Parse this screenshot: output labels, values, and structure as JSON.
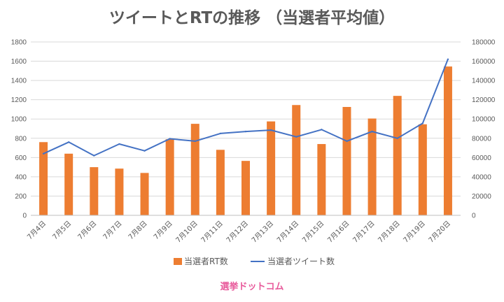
{
  "chart_data": {
    "type": "bar",
    "title": "ツイートとRTの推移 （当選者平均値）",
    "categories": [
      "7月4日",
      "7月5日",
      "7月6日",
      "7月7日",
      "7月8日",
      "7月9日",
      "7月10日",
      "7月11日",
      "7月12日",
      "7月13日",
      "7月14日",
      "7月15日",
      "7月16日",
      "7月17日",
      "7月18日",
      "7月19日",
      "7月20日"
    ],
    "series": [
      {
        "name": "当選者RT数",
        "type": "bar",
        "axis": "left",
        "color": "#ED7D31",
        "values": [
          760,
          640,
          500,
          485,
          440,
          790,
          950,
          680,
          565,
          975,
          1145,
          740,
          1125,
          1005,
          1240,
          945,
          1545
        ]
      },
      {
        "name": "当選者ツイート数",
        "type": "line",
        "axis": "right",
        "color": "#4472C4",
        "values": [
          64000,
          76000,
          62000,
          74000,
          67000,
          79500,
          77000,
          85000,
          87000,
          88500,
          81500,
          89000,
          77000,
          87000,
          80000,
          95500,
          162000
        ]
      }
    ],
    "y_left": {
      "min": 0,
      "max": 1800,
      "step": 200,
      "ticks": [
        "0",
        "200",
        "400",
        "600",
        "800",
        "1000",
        "1200",
        "1400",
        "1600",
        "1800"
      ]
    },
    "y_right": {
      "min": 0,
      "max": 180000,
      "step": 20000,
      "ticks": [
        "0",
        "20000",
        "40000",
        "60000",
        "80000",
        "100000",
        "120000",
        "140000",
        "160000",
        "180000"
      ]
    },
    "grid": true,
    "legend_position": "bottom"
  },
  "brand": {
    "text": "選挙ドットコム"
  }
}
